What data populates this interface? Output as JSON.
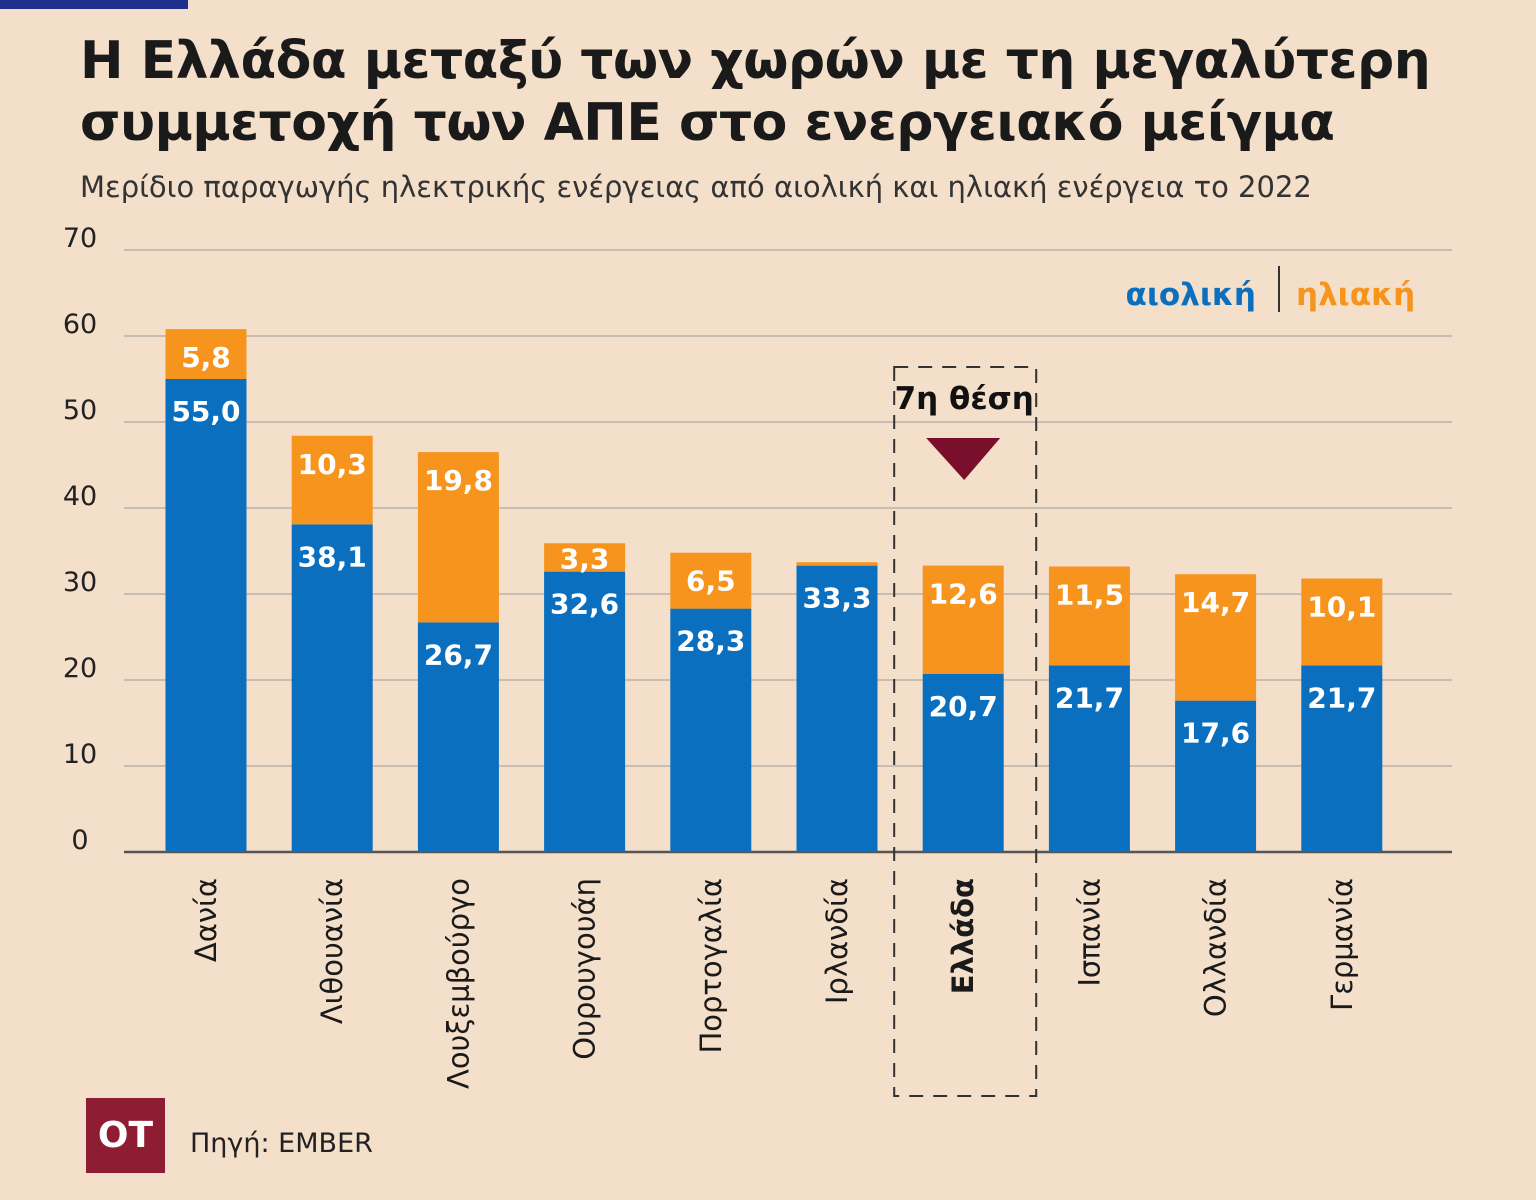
{
  "title": "Η Ελλάδα μεταξύ των χωρών με τη μεγαλύτερη συμμετοχή των ΑΠΕ στο ενεργειακό μείγμα",
  "subtitle": "Μερίδιο παραγωγής ηλεκτρικής ενέργειας από αιολική και ηλιακή ενέργεια το 2022",
  "source": "Πηγή: EMBER",
  "logo_text": "OT",
  "colors": {
    "background": "#f3dfca",
    "wind": "#0a6fbe",
    "solar": "#f7941d",
    "highlight_marker": "#7a0f2b",
    "grid": "#b9b2aa",
    "axis": "#555555"
  },
  "highlight": {
    "category": "Ελλάδα",
    "label": "7η θέση"
  },
  "chart_data": {
    "type": "bar",
    "stacked": true,
    "categories": [
      "Δανία",
      "Λιθουανία",
      "Λουξεμβούργο",
      "Ουρουγουάη",
      "Πορτογαλία",
      "Ιρλανδία",
      "Ελλάδα",
      "Ισπανία",
      "Ολλανδία",
      "Γερμανία"
    ],
    "series": [
      {
        "name": "αιολική",
        "color": "#0a6fbe",
        "values": [
          55.0,
          38.1,
          26.7,
          32.6,
          28.3,
          33.3,
          20.7,
          21.7,
          17.6,
          21.7
        ],
        "labels": [
          "55,0",
          "38,1",
          "26,7",
          "32,6",
          "28,3",
          "33,3",
          "20,7",
          "21,7",
          "17,6",
          "21,7"
        ]
      },
      {
        "name": "ηλιακή",
        "color": "#f7941d",
        "values": [
          5.8,
          10.3,
          19.8,
          3.3,
          6.5,
          0.4,
          12.6,
          11.5,
          14.7,
          10.1
        ],
        "labels": [
          "5,8",
          "10,3",
          "19,8",
          "3,3",
          "6,5",
          "",
          "12,6",
          "11,5",
          "14,7",
          "10,1"
        ]
      }
    ],
    "yticks": [
      "0",
      "10",
      "20",
      "30",
      "40",
      "50",
      "60",
      "70"
    ],
    "ylim": [
      0,
      70
    ],
    "grid": true,
    "legend_position": "top-right",
    "xlabel": "",
    "ylabel": ""
  }
}
